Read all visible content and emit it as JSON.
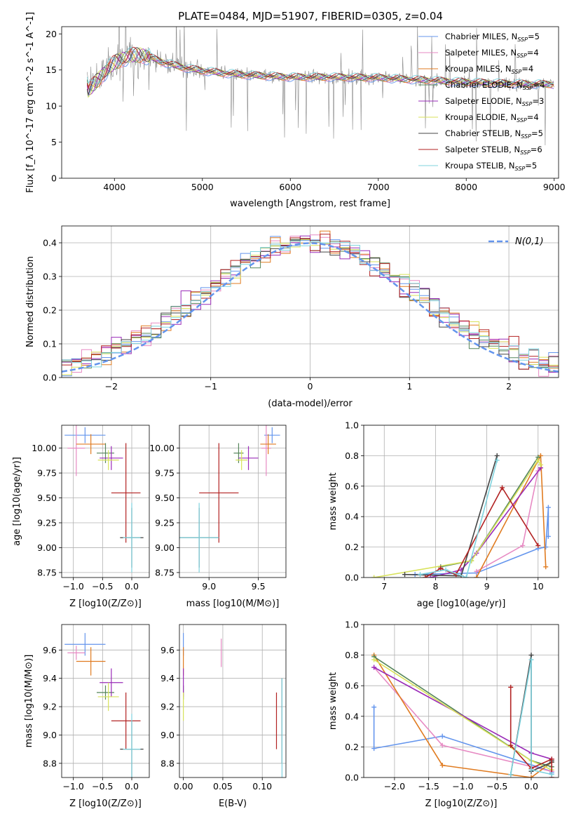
{
  "title": "PLATE=0484, MJD=51907, FIBERID=0305, z=0.04",
  "colors": {
    "Chabrier MILES": "#6495ed",
    "Salpeter MILES": "#e78ac3",
    "Kroupa MILES": "#e07b20",
    "Chabrier ELODIE": "#55855a",
    "Salpeter ELODIE": "#9a2bb8",
    "Kroupa ELODIE": "#d8e25a",
    "Chabrier STELIB": "#444444",
    "Salpeter STELIB": "#b22222",
    "Kroupa STELIB": "#7fd3de",
    "data": "#888888",
    "normal": "#6495ed"
  },
  "chart_data": [
    {
      "type": "line",
      "id": "spectrum",
      "xlabel": "wavelength [Angstrom, rest frame]",
      "ylabel": "Flux [f_λ 10^-17 erg cm^-2 s^-1 A^-1]",
      "xlim": [
        3400,
        9050
      ],
      "ylim": [
        0,
        21
      ],
      "xticks": [
        4000,
        5000,
        6000,
        7000,
        8000,
        9000
      ],
      "yticks": [
        0,
        5,
        10,
        15,
        20
      ],
      "legend_position": "top-right",
      "legend": [
        {
          "model": "Chabrier MILES",
          "nssp": "5"
        },
        {
          "model": "Salpeter MILES",
          "nssp": "4"
        },
        {
          "model": "Kroupa MILES",
          "nssp": "4"
        },
        {
          "model": "Chabrier ELODIE",
          "nssp": "4"
        },
        {
          "model": "Salpeter ELODIE",
          "nssp": "3"
        },
        {
          "model": "Kroupa ELODIE",
          "nssp": "4"
        },
        {
          "model": "Chabrier STELIB",
          "nssp": "5"
        },
        {
          "model": "Salpeter STELIB",
          "nssp": "6"
        },
        {
          "model": "Kroupa STELIB",
          "nssp": "5"
        }
      ],
      "continuum": [
        {
          "x": 3700,
          "y": 12.0
        },
        {
          "x": 3800,
          "y": 13.5
        },
        {
          "x": 3900,
          "y": 14.8
        },
        {
          "x": 4000,
          "y": 16.0
        },
        {
          "x": 4100,
          "y": 16.6
        },
        {
          "x": 4200,
          "y": 17.0
        },
        {
          "x": 4300,
          "y": 17.1
        },
        {
          "x": 4400,
          "y": 16.8
        },
        {
          "x": 4500,
          "y": 16.3
        },
        {
          "x": 4600,
          "y": 15.9
        },
        {
          "x": 4700,
          "y": 15.6
        },
        {
          "x": 4800,
          "y": 15.3
        },
        {
          "x": 5000,
          "y": 14.9
        },
        {
          "x": 5200,
          "y": 14.6
        },
        {
          "x": 5500,
          "y": 14.3
        },
        {
          "x": 6000,
          "y": 14.0
        },
        {
          "x": 6500,
          "y": 14.0
        },
        {
          "x": 7000,
          "y": 13.9
        },
        {
          "x": 7500,
          "y": 13.6
        },
        {
          "x": 8000,
          "y": 13.3
        },
        {
          "x": 8500,
          "y": 13.1
        },
        {
          "x": 9000,
          "y": 13.0
        }
      ]
    },
    {
      "type": "line",
      "id": "residuals",
      "xlabel": "(data-model)/error",
      "ylabel": "Normed distribution",
      "xlim": [
        -2.5,
        2.5
      ],
      "ylim": [
        0,
        0.45
      ],
      "xticks": [
        -2,
        -1,
        0,
        1,
        2
      ],
      "yticks": [
        0.0,
        0.1,
        0.2,
        0.3,
        0.4
      ],
      "grid": true,
      "legend_position": "top-right",
      "normal_label": "N(0,1)",
      "hist_bins": [
        -2.5,
        2.5,
        50
      ]
    },
    {
      "type": "scatter",
      "id": "age-Z",
      "xlabel": "Z [log10(Z/Z⊙)]",
      "ylabel": "age [log10(age/yr)]",
      "xlim": [
        -1.2,
        0.3
      ],
      "ylim": [
        8.7,
        10.23
      ],
      "xticks": [
        -1.0,
        -0.5,
        0.0
      ],
      "yticks": [
        8.75,
        9.0,
        9.25,
        9.5,
        9.75,
        10.0
      ],
      "grid": true,
      "points": [
        {
          "model": "Chabrier MILES",
          "x": -0.8,
          "xerr": 0.35,
          "y": 10.13,
          "yerr": 0.08
        },
        {
          "model": "Salpeter MILES",
          "x": -0.95,
          "xerr": 0.15,
          "y": 10.0,
          "yerr": 0.28
        },
        {
          "model": "Kroupa MILES",
          "x": -0.7,
          "xerr": 0.25,
          "y": 10.04,
          "yerr": 0.1
        },
        {
          "model": "Chabrier ELODIE",
          "x": -0.45,
          "xerr": 0.15,
          "y": 9.95,
          "yerr": 0.1
        },
        {
          "model": "Salpeter ELODIE",
          "x": -0.35,
          "xerr": 0.2,
          "y": 9.9,
          "yerr": 0.12
        },
        {
          "model": "Kroupa ELODIE",
          "x": -0.4,
          "xerr": 0.18,
          "y": 9.88,
          "yerr": 0.1
        },
        {
          "model": "Chabrier STELIB",
          "x": 0.0,
          "xerr": 0.2,
          "y": 9.1,
          "yerr": 0.3
        },
        {
          "model": "Salpeter STELIB",
          "x": -0.1,
          "xerr": 0.25,
          "y": 9.55,
          "yerr": 0.5
        },
        {
          "model": "Kroupa STELIB",
          "x": 0.0,
          "xerr": 0.15,
          "y": 9.1,
          "yerr": 0.35
        }
      ]
    },
    {
      "type": "scatter",
      "id": "age-mass",
      "xlabel": "mass [log10(M/M⊙)]",
      "xlim": [
        8.7,
        9.78
      ],
      "ylim": [
        8.7,
        10.23
      ],
      "xticks": [
        9.0,
        9.5
      ],
      "yticks": [
        8.75,
        9.0,
        9.25,
        9.5,
        9.75,
        10.0
      ],
      "grid": true,
      "points": [
        {
          "model": "Chabrier MILES",
          "x": 9.64,
          "xerr": 0.08,
          "y": 10.13,
          "yerr": 0.08
        },
        {
          "model": "Salpeter MILES",
          "x": 9.58,
          "xerr": 0.05,
          "y": 10.0,
          "yerr": 0.28
        },
        {
          "model": "Kroupa MILES",
          "x": 9.6,
          "xerr": 0.08,
          "y": 10.04,
          "yerr": 0.1
        },
        {
          "model": "Chabrier ELODIE",
          "x": 9.3,
          "xerr": 0.05,
          "y": 9.95,
          "yerr": 0.1
        },
        {
          "model": "Salpeter ELODIE",
          "x": 9.4,
          "xerr": 0.1,
          "y": 9.9,
          "yerr": 0.12
        },
        {
          "model": "Kroupa ELODIE",
          "x": 9.33,
          "xerr": 0.06,
          "y": 9.88,
          "yerr": 0.1
        },
        {
          "model": "Chabrier STELIB",
          "x": 8.9,
          "xerr": 0.2,
          "y": 9.1,
          "yerr": 0.3
        },
        {
          "model": "Salpeter STELIB",
          "x": 9.1,
          "xerr": 0.2,
          "y": 9.55,
          "yerr": 0.5
        },
        {
          "model": "Kroupa STELIB",
          "x": 8.9,
          "xerr": 0.2,
          "y": 9.1,
          "yerr": 0.35
        }
      ]
    },
    {
      "type": "line",
      "id": "weight-age",
      "xlabel": "age [log10(age/yr)]",
      "ylabel": "mass weight",
      "xlim": [
        6.6,
        10.4
      ],
      "ylim": [
        0,
        1
      ],
      "xticks": [
        7,
        8,
        9,
        10
      ],
      "yticks": [
        0.0,
        0.2,
        0.4,
        0.6,
        0.8,
        1.0
      ],
      "grid": true,
      "series": [
        {
          "model": "Chabrier MILES",
          "x": [
            7.6,
            8.8,
            10.0,
            10.15,
            10.2,
            10.2
          ],
          "y": [
            0.02,
            0.03,
            0.19,
            0.2,
            0.46,
            0.27
          ]
        },
        {
          "model": "Salpeter MILES",
          "x": [
            8.8,
            9.7,
            10.0,
            10.05
          ],
          "y": [
            0.04,
            0.21,
            0.7,
            0.72
          ]
        },
        {
          "model": "Kroupa MILES",
          "x": [
            8.8,
            10.05,
            10.15
          ],
          "y": [
            0.0,
            0.8,
            0.07
          ]
        },
        {
          "model": "Chabrier ELODIE",
          "x": [
            8.1,
            8.7,
            10.0
          ],
          "y": [
            0.07,
            0.11,
            0.79
          ]
        },
        {
          "model": "Salpeter ELODIE",
          "x": [
            7.9,
            8.5,
            8.8,
            10.05
          ],
          "y": [
            0.0,
            0.05,
            0.16,
            0.72
          ]
        },
        {
          "model": "Kroupa ELODIE",
          "x": [
            6.8,
            8.7,
            10.0,
            10.05
          ],
          "y": [
            0.0,
            0.11,
            0.77,
            0.74
          ]
        },
        {
          "model": "Chabrier STELIB",
          "x": [
            7.4,
            8.5,
            9.2
          ],
          "y": [
            0.02,
            0.01,
            0.8
          ]
        },
        {
          "model": "Salpeter STELIB",
          "x": [
            7.8,
            8.1,
            8.4,
            9.3,
            10.0
          ],
          "y": [
            0.0,
            0.06,
            0.02,
            0.59,
            0.21
          ]
        },
        {
          "model": "Kroupa STELIB",
          "x": [
            7.7,
            8.2,
            8.6,
            9.2
          ],
          "y": [
            0.02,
            0.05,
            0.0,
            0.77
          ]
        }
      ]
    },
    {
      "type": "scatter",
      "id": "mass-Z",
      "xlabel": "Z [log10(Z/Z⊙)]",
      "ylabel": "mass [log10(M/M⊙)]",
      "xlim": [
        -1.2,
        0.3
      ],
      "ylim": [
        8.7,
        9.78
      ],
      "xticks": [
        -1.0,
        -0.5,
        0.0
      ],
      "yticks": [
        8.8,
        9.0,
        9.2,
        9.4,
        9.6
      ],
      "grid": true,
      "points": [
        {
          "model": "Chabrier MILES",
          "x": -0.8,
          "xerr": 0.35,
          "y": 9.64,
          "yerr": 0.08
        },
        {
          "model": "Salpeter MILES",
          "x": -0.95,
          "xerr": 0.15,
          "y": 9.58,
          "yerr": 0.05
        },
        {
          "model": "Kroupa MILES",
          "x": -0.7,
          "xerr": 0.25,
          "y": 9.52,
          "yerr": 0.1
        },
        {
          "model": "Chabrier ELODIE",
          "x": -0.45,
          "xerr": 0.15,
          "y": 9.3,
          "yerr": 0.05
        },
        {
          "model": "Salpeter ELODIE",
          "x": -0.35,
          "xerr": 0.2,
          "y": 9.37,
          "yerr": 0.1
        },
        {
          "model": "Kroupa ELODIE",
          "x": -0.4,
          "xerr": 0.18,
          "y": 9.27,
          "yerr": 0.1
        },
        {
          "model": "Chabrier STELIB",
          "x": 0.0,
          "xerr": 0.2,
          "y": 8.9,
          "yerr": 0.2
        },
        {
          "model": "Salpeter STELIB",
          "x": -0.1,
          "xerr": 0.25,
          "y": 9.1,
          "yerr": 0.2
        },
        {
          "model": "Kroupa STELIB",
          "x": 0.0,
          "xerr": 0.15,
          "y": 8.9,
          "yerr": 0.25
        }
      ]
    },
    {
      "type": "scatter",
      "id": "mass-EBV",
      "xlabel": "E(B-V)",
      "xlim": [
        -0.005,
        0.13
      ],
      "ylim": [
        8.7,
        9.78
      ],
      "xticks": [
        0.0,
        0.05,
        0.1
      ],
      "yticks": [
        8.8,
        9.0,
        9.2,
        9.4,
        9.6
      ],
      "grid": true,
      "points": [
        {
          "model": "Chabrier MILES",
          "x": 0.0,
          "y": 9.64,
          "yerr": 0.08
        },
        {
          "model": "Salpeter MILES",
          "x": 0.048,
          "y": 9.58,
          "yerr": 0.1
        },
        {
          "model": "Kroupa MILES",
          "x": 0.0,
          "y": 9.52,
          "yerr": 0.1
        },
        {
          "model": "Chabrier ELODIE",
          "x": 0.0,
          "y": 9.3,
          "yerr": 0.05
        },
        {
          "model": "Salpeter ELODIE",
          "x": 0.0,
          "y": 9.37,
          "yerr": 0.1
        },
        {
          "model": "Kroupa ELODIE",
          "x": 0.0,
          "y": 9.2,
          "yerr": 0.1
        },
        {
          "model": "Chabrier STELIB",
          "x": 0.125,
          "y": 9.1,
          "yerr": 0.3
        },
        {
          "model": "Salpeter STELIB",
          "x": 0.118,
          "y": 9.1,
          "yerr": 0.2
        },
        {
          "model": "Kroupa STELIB",
          "x": 0.125,
          "y": 9.05,
          "yerr": 0.35
        }
      ]
    },
    {
      "type": "line",
      "id": "weight-Z",
      "xlabel": "Z [log10(Z/Z⊙)]",
      "ylabel": "mass weight",
      "xlim": [
        -2.45,
        0.4
      ],
      "ylim": [
        0,
        1
      ],
      "xticks": [
        -2.0,
        -1.5,
        -1.0,
        -0.5,
        0.0
      ],
      "yticks": [
        0.0,
        0.2,
        0.4,
        0.6,
        0.8,
        1.0
      ],
      "grid": true,
      "series": [
        {
          "model": "Chabrier MILES",
          "x": [
            -2.3,
            -2.3,
            -1.3,
            0.3,
            0.3
          ],
          "y": [
            0.46,
            0.19,
            0.27,
            0.04,
            0.03
          ]
        },
        {
          "model": "Salpeter MILES",
          "x": [
            -2.3,
            -1.3,
            0.3
          ],
          "y": [
            0.72,
            0.21,
            0.04
          ]
        },
        {
          "model": "Kroupa MILES",
          "x": [
            -2.3,
            -1.3,
            0.0,
            0.3
          ],
          "y": [
            0.8,
            0.08,
            0.0,
            0.1
          ]
        },
        {
          "model": "Chabrier ELODIE",
          "x": [
            -2.3,
            0.0,
            0.3
          ],
          "y": [
            0.79,
            0.11,
            0.07
          ]
        },
        {
          "model": "Salpeter ELODIE",
          "x": [
            -2.3,
            0.0,
            0.3
          ],
          "y": [
            0.72,
            0.16,
            0.12
          ]
        },
        {
          "model": "Kroupa ELODIE",
          "x": [
            -2.3,
            0.0,
            0.3
          ],
          "y": [
            0.77,
            0.11,
            0.05
          ]
        },
        {
          "model": "Chabrier STELIB",
          "x": [
            -0.3,
            0.0,
            0.0,
            0.3,
            0.3
          ],
          "y": [
            0.02,
            0.8,
            0.04,
            0.1,
            0.11
          ]
        },
        {
          "model": "Salpeter STELIB",
          "x": [
            -0.3,
            -0.3,
            0.0,
            0.3,
            0.3
          ],
          "y": [
            0.59,
            0.21,
            0.06,
            0.12,
            0.0
          ]
        },
        {
          "model": "Kroupa STELIB",
          "x": [
            -0.3,
            0.0,
            0.0,
            0.3
          ],
          "y": [
            0.02,
            0.77,
            0.05,
            0.02
          ]
        }
      ]
    }
  ]
}
